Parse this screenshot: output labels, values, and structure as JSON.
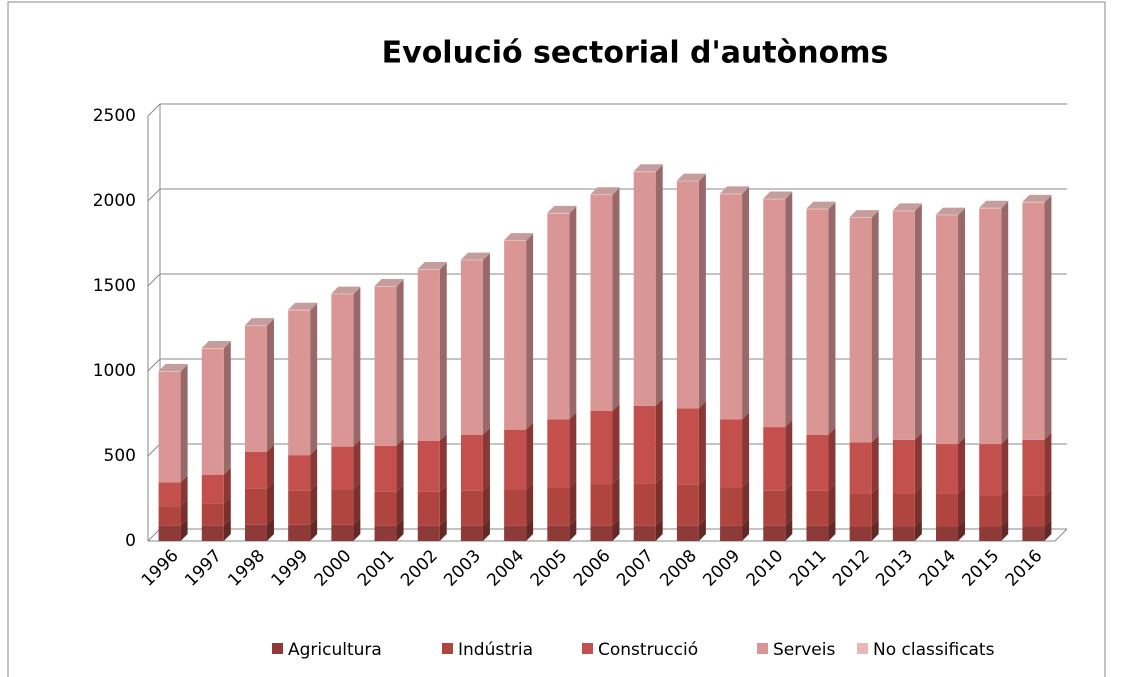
{
  "chart_data": {
    "type": "stacked_bar",
    "title": "Evolució sectorial d'autònoms",
    "categories": [
      "1996",
      "1997",
      "1998",
      "1999",
      "2000",
      "2001",
      "2002",
      "2003",
      "2004",
      "2005",
      "2006",
      "2007",
      "2008",
      "2009",
      "2010",
      "2011",
      "2012",
      "2013",
      "2014",
      "2015",
      "2016"
    ],
    "series": [
      {
        "name": "Agricultura",
        "color": "#8e3a38",
        "values": [
          90,
          90,
          95,
          95,
          95,
          90,
          90,
          90,
          90,
          90,
          90,
          90,
          90,
          90,
          90,
          90,
          85,
          85,
          85,
          85,
          85
        ]
      },
      {
        "name": "Indústria",
        "color": "#b0453f",
        "values": [
          115,
          130,
          215,
          200,
          210,
          200,
          200,
          205,
          210,
          225,
          245,
          250,
          240,
          225,
          205,
          205,
          195,
          195,
          195,
          185,
          180
        ]
      },
      {
        "name": "Construcció",
        "color": "#c4504d",
        "values": [
          140,
          170,
          215,
          210,
          250,
          270,
          300,
          330,
          355,
          400,
          430,
          455,
          450,
          400,
          375,
          330,
          300,
          315,
          290,
          300,
          330
        ]
      },
      {
        "name": "Serveis",
        "color": "#d99694",
        "values": [
          650,
          740,
          740,
          850,
          895,
          935,
          1005,
          1025,
          1110,
          1210,
          1270,
          1375,
          1335,
          1325,
          1340,
          1325,
          1320,
          1345,
          1345,
          1385,
          1395
        ]
      },
      {
        "name": "No classificats",
        "color": "#e6b9b8",
        "values": [
          5,
          5,
          5,
          5,
          5,
          5,
          5,
          5,
          5,
          5,
          5,
          5,
          5,
          5,
          5,
          5,
          5,
          5,
          5,
          5,
          5
        ]
      }
    ],
    "ylim": [
      0,
      2500
    ],
    "yticks": [
      0,
      500,
      1000,
      1500,
      2000,
      2500
    ],
    "grid": true,
    "legend": "bottom"
  }
}
